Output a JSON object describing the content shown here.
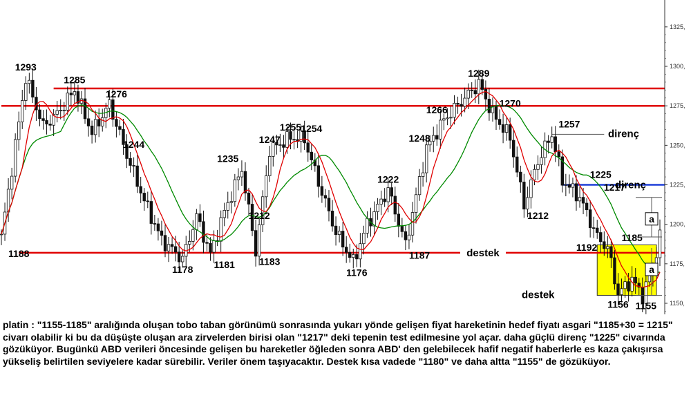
{
  "chart_data": {
    "type": "line",
    "y_ticks": [
      "1325,",
      "1300,",
      "1275,",
      "1250,",
      "1225,",
      "1200,",
      "1175,",
      "1150,"
    ],
    "y_tick_values": [
      1325,
      1300,
      1275,
      1250,
      1225,
      1200,
      1175,
      1150
    ],
    "ylim": [
      1143,
      1342
    ],
    "x_count": 190,
    "anchors": [
      [
        0,
        1192
      ],
      [
        4,
        1250
      ],
      [
        7,
        1293
      ],
      [
        12,
        1262
      ],
      [
        16,
        1270
      ],
      [
        21,
        1285
      ],
      [
        26,
        1258
      ],
      [
        31,
        1276
      ],
      [
        36,
        1244
      ],
      [
        41,
        1215
      ],
      [
        46,
        1190
      ],
      [
        52,
        1178
      ],
      [
        56,
        1205
      ],
      [
        60,
        1181
      ],
      [
        64,
        1208
      ],
      [
        69,
        1235
      ],
      [
        73,
        1183
      ],
      [
        77,
        1247
      ],
      [
        83,
        1255
      ],
      [
        87,
        1254
      ],
      [
        92,
        1220
      ],
      [
        96,
        1195
      ],
      [
        101,
        1176
      ],
      [
        105,
        1200
      ],
      [
        111,
        1222
      ],
      [
        116,
        1187
      ],
      [
        122,
        1248
      ],
      [
        127,
        1266
      ],
      [
        133,
        1280
      ],
      [
        137,
        1289
      ],
      [
        141,
        1270
      ],
      [
        146,
        1255
      ],
      [
        150,
        1212
      ],
      [
        154,
        1240
      ],
      [
        158,
        1257
      ],
      [
        161,
        1228
      ],
      [
        166,
        1217
      ],
      [
        171,
        1192
      ],
      [
        174,
        1185
      ],
      [
        177,
        1156
      ],
      [
        181,
        1165
      ],
      [
        184,
        1155
      ],
      [
        187,
        1172
      ],
      [
        189,
        1193
      ]
    ],
    "price_labels": [
      {
        "text": "1293",
        "x": 7,
        "y": 1293,
        "pos": "above"
      },
      {
        "text": "1285",
        "x": 21,
        "y": 1285,
        "pos": "above"
      },
      {
        "text": "1276",
        "x": 33,
        "y": 1276,
        "pos": "above"
      },
      {
        "text": "1244",
        "x": 38,
        "y": 1244,
        "pos": "above"
      },
      {
        "text": "1235",
        "x": 65,
        "y": 1235,
        "pos": "above"
      },
      {
        "text": "1247",
        "x": 77,
        "y": 1247,
        "pos": "above"
      },
      {
        "text": "1255",
        "x": 83,
        "y": 1255,
        "pos": "above"
      },
      {
        "text": "1254",
        "x": 89,
        "y": 1254,
        "pos": "above"
      },
      {
        "text": "1222",
        "x": 111,
        "y": 1222,
        "pos": "above"
      },
      {
        "text": "1248",
        "x": 120,
        "y": 1248,
        "pos": "above"
      },
      {
        "text": "1266",
        "x": 125,
        "y": 1266,
        "pos": "above"
      },
      {
        "text": "1289",
        "x": 137,
        "y": 1289,
        "pos": "above"
      },
      {
        "text": "1270",
        "x": 146,
        "y": 1270,
        "pos": "above"
      },
      {
        "text": "1257",
        "x": 163,
        "y": 1257,
        "pos": "above"
      },
      {
        "text": "1225",
        "x": 172,
        "y": 1225,
        "pos": "above"
      },
      {
        "text": "1217",
        "x": 176,
        "y": 1217,
        "pos": "above"
      },
      {
        "text": "1185",
        "x": 181,
        "y": 1185,
        "pos": "above"
      },
      {
        "text": "1188",
        "x": 5,
        "y": 1188,
        "pos": "below"
      },
      {
        "text": "1178",
        "x": 52,
        "y": 1178,
        "pos": "below"
      },
      {
        "text": "1181",
        "x": 64,
        "y": 1181,
        "pos": "below"
      },
      {
        "text": "1212",
        "x": 74,
        "y": 1212,
        "pos": "below"
      },
      {
        "text": "1183",
        "x": 77,
        "y": 1183,
        "pos": "below"
      },
      {
        "text": "1176",
        "x": 102,
        "y": 1176,
        "pos": "below"
      },
      {
        "text": "1187",
        "x": 120,
        "y": 1187,
        "pos": "below"
      },
      {
        "text": "1212",
        "x": 154,
        "y": 1212,
        "pos": "below"
      },
      {
        "text": "1192",
        "x": 168,
        "y": 1192,
        "pos": "below"
      },
      {
        "text": "1156",
        "x": 177,
        "y": 1156,
        "pos": "below"
      },
      {
        "text": "1155",
        "x": 185,
        "y": 1155,
        "pos": "below"
      }
    ],
    "horizontal_lines": [
      {
        "value": 1286,
        "color": "#e00000",
        "x_from": 15,
        "x_to": 190
      },
      {
        "value": 1275,
        "color": "#e00000",
        "x_from": 0,
        "x_to": 190
      },
      {
        "value": 1182,
        "color": "#e00000",
        "x_from": 5,
        "x_to": 190
      },
      {
        "value": 1225,
        "color": "#1f3fd8",
        "x_from": 161,
        "x_to": 190
      },
      {
        "value": 1257,
        "color": "#555555",
        "x_from": 158,
        "x_to": 173
      }
    ],
    "annotations": {
      "direnc_upper": "direnç",
      "direnc_lower": "direnç",
      "destek_line": "destek",
      "destek_box": "destek",
      "a_upper": "a",
      "a_lower": "a"
    },
    "highlight_box": {
      "x_from": 171,
      "x_to": 190,
      "y_from": 1155,
      "y_to": 1187,
      "color": "#ffff00"
    },
    "colors": {
      "candles": "#111111",
      "ma_fast": "#e00000",
      "ma_slow": "#008a00"
    }
  },
  "caption": "platin : \"1155-1185\" aralığında oluşan tobo taban görünümü sonrasında yukarı yönde gelişen fiyat hareketinin hedef fiyatı asgari \"1185+30 = 1215\" civarı olabilir ki bu da düşüşte oluşan ara zirvelerden birisi olan \"1217\" deki tepenin test edilmesine yol açar. daha güçlü direnç \"1225\" civarında gözüküyor. Bugünkü ABD verileri öncesinde gelişen bu hareketler öğleden sonra ABD' den gelebilecek hafif negatif haberlerle es kaza çakışırsa yükseliş belirtilen seviyelere kadar sürebilir. Veriler önem taşıyacaktır. Destek kısa vadede \"1180\" ve daha altta \"1155\" de gözüküyor."
}
